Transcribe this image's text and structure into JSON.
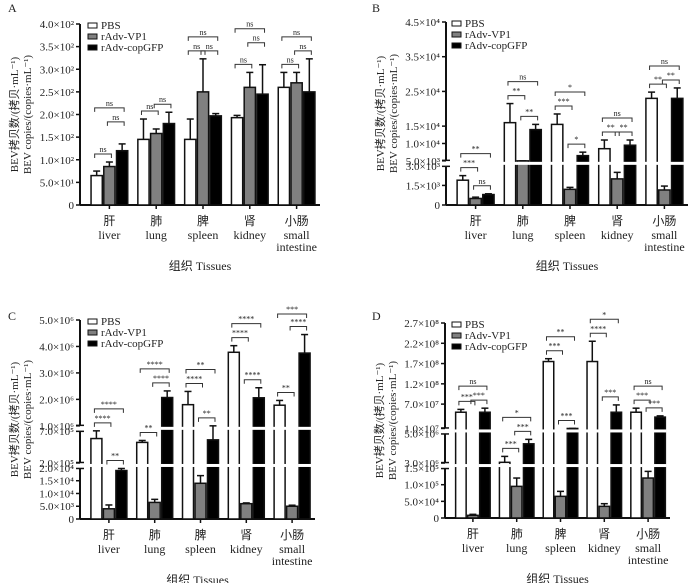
{
  "legend": [
    "PBS",
    "rAdv-VP1",
    "rAdv-copGFP"
  ],
  "colors": {
    "PBS": "#ffffff",
    "rAdv-VP1": "#808080",
    "rAdv-copGFP": "#000000",
    "axis": "#111111"
  },
  "tissues": [
    {
      "zh": "肝",
      "en": [
        "liver"
      ]
    },
    {
      "zh": "肺",
      "en": [
        "lung"
      ]
    },
    {
      "zh": "脾",
      "en": [
        "spleen"
      ]
    },
    {
      "zh": "肾",
      "en": [
        "kidney"
      ]
    },
    {
      "zh": "小肠",
      "en": [
        "small",
        "intestine"
      ]
    }
  ],
  "xlabel": "组织  Tissues",
  "ylabel_zh": "BEV拷贝数/(拷贝·mL⁻¹)",
  "ylabel_en": "BEV copies/(copies·mL⁻¹)",
  "chart_data": [
    {
      "panel": "A",
      "type": "bar",
      "categories": [
        "liver",
        "lung",
        "spleen",
        "kidney",
        "small intestine"
      ],
      "ylim": [
        0,
        400
      ],
      "yticks": [
        [
          0,
          "0"
        ],
        [
          50,
          "5.0×10¹"
        ],
        [
          100,
          "1.0×10²"
        ],
        [
          150,
          "1.5×10²"
        ],
        [
          200,
          "2.0×10²"
        ],
        [
          250,
          "2.5×10²"
        ],
        [
          300,
          "3.0×10²"
        ],
        [
          350,
          "3.5×10²"
        ],
        [
          400,
          "4.0×10²"
        ]
      ],
      "series": [
        {
          "name": "PBS",
          "values": [
            65,
            145,
            145,
            193,
            260
          ],
          "errors": [
            10,
            45,
            45,
            5,
            33
          ]
        },
        {
          "name": "rAdv-VP1",
          "values": [
            85,
            158,
            250,
            260,
            270
          ],
          "errors": [
            10,
            10,
            73,
            33,
            23
          ]
        },
        {
          "name": "rAdv-copGFP",
          "values": [
            120,
            180,
            197,
            245,
            250
          ],
          "errors": [
            15,
            25,
            5,
            65,
            73
          ]
        }
      ],
      "significance": [
        {
          "group": 0,
          "pair": [
            0,
            1
          ],
          "label": "ns",
          "level": 0
        },
        {
          "group": 0,
          "pair": [
            1,
            2
          ],
          "label": "ns",
          "level": 1
        },
        {
          "group": 0,
          "pair": [
            0,
            2
          ],
          "label": "ns",
          "level": 2
        },
        {
          "group": 1,
          "pair": [
            0,
            1
          ],
          "label": "ns",
          "level": 0
        },
        {
          "group": 1,
          "pair": [
            1,
            2
          ],
          "label": "ns",
          "level": 0
        },
        {
          "group": 2,
          "pair": [
            0,
            1
          ],
          "label": "ns",
          "level": 0
        },
        {
          "group": 2,
          "pair": [
            1,
            2
          ],
          "label": "ns",
          "level": 0
        },
        {
          "group": 2,
          "pair": [
            0,
            2
          ],
          "label": "ns",
          "level": 1
        },
        {
          "group": 3,
          "pair": [
            0,
            1
          ],
          "label": "ns",
          "level": 0
        },
        {
          "group": 3,
          "pair": [
            1,
            2
          ],
          "label": "ns",
          "level": 1
        },
        {
          "group": 3,
          "pair": [
            0,
            2
          ],
          "label": "ns",
          "level": 2
        },
        {
          "group": 4,
          "pair": [
            0,
            1
          ],
          "label": "ns",
          "level": 0
        },
        {
          "group": 4,
          "pair": [
            1,
            2
          ],
          "label": "ns",
          "level": 0
        },
        {
          "group": 4,
          "pair": [
            0,
            2
          ],
          "label": "ns",
          "level": 1
        }
      ]
    },
    {
      "panel": "B",
      "type": "bar",
      "categories": [
        "liver",
        "lung",
        "spleen",
        "kidney",
        "small intestine"
      ],
      "broken_axis": [
        {
          "range": [
            0,
            3000
          ],
          "ticks": [
            [
              0,
              "0"
            ],
            [
              1500,
              "1.5×10³"
            ],
            [
              3000,
              "3.0×10³"
            ]
          ]
        },
        {
          "range": [
            5000,
            45000
          ],
          "ticks": [
            [
              5000,
              "5.0×10³"
            ],
            [
              10000,
              "1.0×10⁴"
            ],
            [
              15000,
              "1.5×10⁴"
            ],
            [
              25000,
              "2.5×10⁴"
            ],
            [
              35000,
              "3.5×10⁴"
            ],
            [
              45000,
              "4.5×10⁴"
            ]
          ]
        }
      ],
      "series": [
        {
          "name": "PBS",
          "values": [
            1900,
            16000,
            15500,
            8500,
            23000
          ],
          "errors": [
            350,
            5500,
            3000,
            2500,
            1800
          ]
        },
        {
          "name": "rAdv-VP1",
          "values": [
            500,
            3800,
            1200,
            2000,
            1150
          ],
          "errors": [
            100,
            200,
            150,
            500,
            300
          ]
        },
        {
          "name": "rAdv-copGFP",
          "values": [
            800,
            14000,
            6500,
            9500,
            23000
          ],
          "errors": [
            60,
            1500,
            1000,
            1500,
            3000
          ]
        }
      ],
      "significance": [
        {
          "group": 0,
          "pair": [
            0,
            1
          ],
          "label": "***",
          "level": 0
        },
        {
          "group": 0,
          "pair": [
            1,
            2
          ],
          "label": "ns",
          "level": 0
        },
        {
          "group": 0,
          "pair": [
            0,
            2
          ],
          "label": "**",
          "level": 1
        },
        {
          "group": 1,
          "pair": [
            0,
            1
          ],
          "label": "**",
          "level": 0
        },
        {
          "group": 1,
          "pair": [
            1,
            2
          ],
          "label": "**",
          "level": 0
        },
        {
          "group": 1,
          "pair": [
            0,
            2
          ],
          "label": "ns",
          "level": 1
        },
        {
          "group": 2,
          "pair": [
            0,
            1
          ],
          "label": "***",
          "level": 0
        },
        {
          "group": 2,
          "pair": [
            1,
            2
          ],
          "label": "*",
          "level": 0
        },
        {
          "group": 2,
          "pair": [
            0,
            2
          ],
          "label": "*",
          "level": 1
        },
        {
          "group": 3,
          "pair": [
            0,
            1
          ],
          "label": "**",
          "level": 0
        },
        {
          "group": 3,
          "pair": [
            1,
            2
          ],
          "label": "**",
          "level": 0
        },
        {
          "group": 3,
          "pair": [
            0,
            2
          ],
          "label": "ns",
          "level": 1
        },
        {
          "group": 4,
          "pair": [
            0,
            1
          ],
          "label": "**",
          "level": 0
        },
        {
          "group": 4,
          "pair": [
            1,
            2
          ],
          "label": "**",
          "level": 0
        },
        {
          "group": 4,
          "pair": [
            0,
            2
          ],
          "label": "ns",
          "level": 1
        }
      ]
    },
    {
      "panel": "C",
      "type": "bar",
      "categories": [
        "liver",
        "lung",
        "spleen",
        "kidney",
        "small intestine"
      ],
      "broken_axis": [
        {
          "range": [
            0,
            20000
          ],
          "ticks": [
            [
              0,
              "0"
            ],
            [
              5000,
              "5.0×10³"
            ],
            [
              10000,
              "1.0×10⁴"
            ],
            [
              15000,
              "1.5×10⁴"
            ],
            [
              20000,
              "2.0×10⁴"
            ]
          ]
        },
        {
          "range": [
            200000,
            700000
          ],
          "ticks": [
            [
              200000,
              "2.0×10⁵"
            ],
            [
              700000,
              "7.0×10⁵"
            ]
          ]
        },
        {
          "range": [
            1000000,
            5000000
          ],
          "ticks": [
            [
              1000000,
              "1.0×10⁶"
            ],
            [
              2000000,
              "2.0×10⁶"
            ],
            [
              3000000,
              "3.0×10⁶"
            ],
            [
              4000000,
              "4.0×10⁶"
            ],
            [
              5000000,
              "5.0×10⁶"
            ]
          ]
        }
      ],
      "series": [
        {
          "name": "PBS",
          "values": [
            580000,
            520000,
            1800000,
            3780000,
            1780000
          ],
          "errors": [
            120000,
            30000,
            500000,
            250000,
            180000
          ]
        },
        {
          "name": "rAdv-VP1",
          "values": [
            4000,
            6500,
            14000,
            6000,
            5000
          ],
          "errors": [
            1500,
            1200,
            3000,
            300,
            400
          ]
        },
        {
          "name": "rAdv-copGFP",
          "values": [
            19000,
            2070000,
            560000,
            2060000,
            3750000
          ],
          "errors": [
            800,
            250000,
            180000,
            380000,
            700000
          ]
        }
      ],
      "significance": [
        {
          "group": 0,
          "pair": [
            0,
            1
          ],
          "label": "****",
          "level": 0
        },
        {
          "group": 0,
          "pair": [
            1,
            2
          ],
          "label": "**",
          "level": 0
        },
        {
          "group": 0,
          "pair": [
            0,
            2
          ],
          "label": "****",
          "level": 1
        },
        {
          "group": 1,
          "pair": [
            0,
            1
          ],
          "label": "**",
          "level": 0
        },
        {
          "group": 1,
          "pair": [
            1,
            2
          ],
          "label": "****",
          "level": 0
        },
        {
          "group": 1,
          "pair": [
            0,
            2
          ],
          "label": "****",
          "level": 1
        },
        {
          "group": 2,
          "pair": [
            0,
            1
          ],
          "label": "****",
          "level": 0
        },
        {
          "group": 2,
          "pair": [
            1,
            2
          ],
          "label": "**",
          "level": 0
        },
        {
          "group": 2,
          "pair": [
            0,
            2
          ],
          "label": "**",
          "level": 1
        },
        {
          "group": 3,
          "pair": [
            0,
            1
          ],
          "label": "****",
          "level": 0
        },
        {
          "group": 3,
          "pair": [
            1,
            2
          ],
          "label": "****",
          "level": 0
        },
        {
          "group": 3,
          "pair": [
            0,
            2
          ],
          "label": "****",
          "level": 1
        },
        {
          "group": 4,
          "pair": [
            0,
            1
          ],
          "label": "**",
          "level": 0
        },
        {
          "group": 4,
          "pair": [
            1,
            2
          ],
          "label": "****",
          "level": 0
        },
        {
          "group": 4,
          "pair": [
            0,
            2
          ],
          "label": "***",
          "level": 1
        }
      ]
    },
    {
      "panel": "D",
      "type": "bar",
      "categories": [
        "liver",
        "lung",
        "spleen",
        "kidney",
        "small intestine"
      ],
      "broken_axis": [
        {
          "range": [
            0,
            150000
          ],
          "ticks": [
            [
              0,
              "0"
            ],
            [
              50000,
              "5.0×10⁴"
            ],
            [
              100000,
              "1.0×10⁵"
            ],
            [
              150000,
              "1.5×10⁵"
            ]
          ]
        },
        {
          "range": [
            3000000,
            5000000
          ],
          "ticks": [
            [
              3000000,
              "3.0×10⁶"
            ],
            [
              5000000,
              "5.0×10⁶"
            ]
          ]
        },
        {
          "range": [
            10000000,
            270000000
          ],
          "ticks": [
            [
              10000000,
              "1.0×10⁷"
            ],
            [
              70000000,
              "7.0×10⁷"
            ],
            [
              120000000,
              "1.2×10⁸"
            ],
            [
              170000000,
              "1.7×10⁸"
            ],
            [
              220000000,
              "2.2×10⁸"
            ],
            [
              270000000,
              "2.7×10⁸"
            ]
          ]
        }
      ],
      "series": [
        {
          "name": "PBS",
          "values": [
            50000000,
            3050000,
            175000000,
            175000000,
            50000000
          ],
          "errors": [
            7000000,
            400000,
            7000000,
            50000000,
            10000000
          ]
        },
        {
          "name": "rAdv-VP1",
          "values": [
            8000,
            95000,
            65000,
            35000,
            120000
          ],
          "errors": [
            3000,
            25000,
            15000,
            8000,
            20000
          ]
        },
        {
          "name": "rAdv-copGFP",
          "values": [
            50000000,
            4300000,
            5700000,
            50000000,
            38000000
          ],
          "errors": [
            10000000,
            300000,
            400000,
            18000000,
            3000000
          ]
        }
      ],
      "significance": [
        {
          "group": 0,
          "pair": [
            0,
            1
          ],
          "label": "***",
          "level": 0
        },
        {
          "group": 0,
          "pair": [
            1,
            2
          ],
          "label": "***",
          "level": 0
        },
        {
          "group": 0,
          "pair": [
            0,
            2
          ],
          "label": "ns",
          "level": 1
        },
        {
          "group": 1,
          "pair": [
            0,
            1
          ],
          "label": "***",
          "level": 0
        },
        {
          "group": 1,
          "pair": [
            1,
            2
          ],
          "label": "***",
          "level": 0
        },
        {
          "group": 1,
          "pair": [
            0,
            2
          ],
          "label": "*",
          "level": 1
        },
        {
          "group": 2,
          "pair": [
            0,
            1
          ],
          "label": "***",
          "level": 0
        },
        {
          "group": 2,
          "pair": [
            1,
            2
          ],
          "label": "***",
          "level": 0
        },
        {
          "group": 2,
          "pair": [
            0,
            2
          ],
          "label": "**",
          "level": 1
        },
        {
          "group": 3,
          "pair": [
            0,
            1
          ],
          "label": "****",
          "level": 0
        },
        {
          "group": 3,
          "pair": [
            1,
            2
          ],
          "label": "***",
          "level": 0
        },
        {
          "group": 3,
          "pair": [
            0,
            2
          ],
          "label": "*",
          "level": 1
        },
        {
          "group": 4,
          "pair": [
            0,
            1
          ],
          "label": "***",
          "level": 0
        },
        {
          "group": 4,
          "pair": [
            1,
            2
          ],
          "label": "***",
          "level": 0
        },
        {
          "group": 4,
          "pair": [
            0,
            2
          ],
          "label": "ns",
          "level": 1
        }
      ]
    }
  ]
}
